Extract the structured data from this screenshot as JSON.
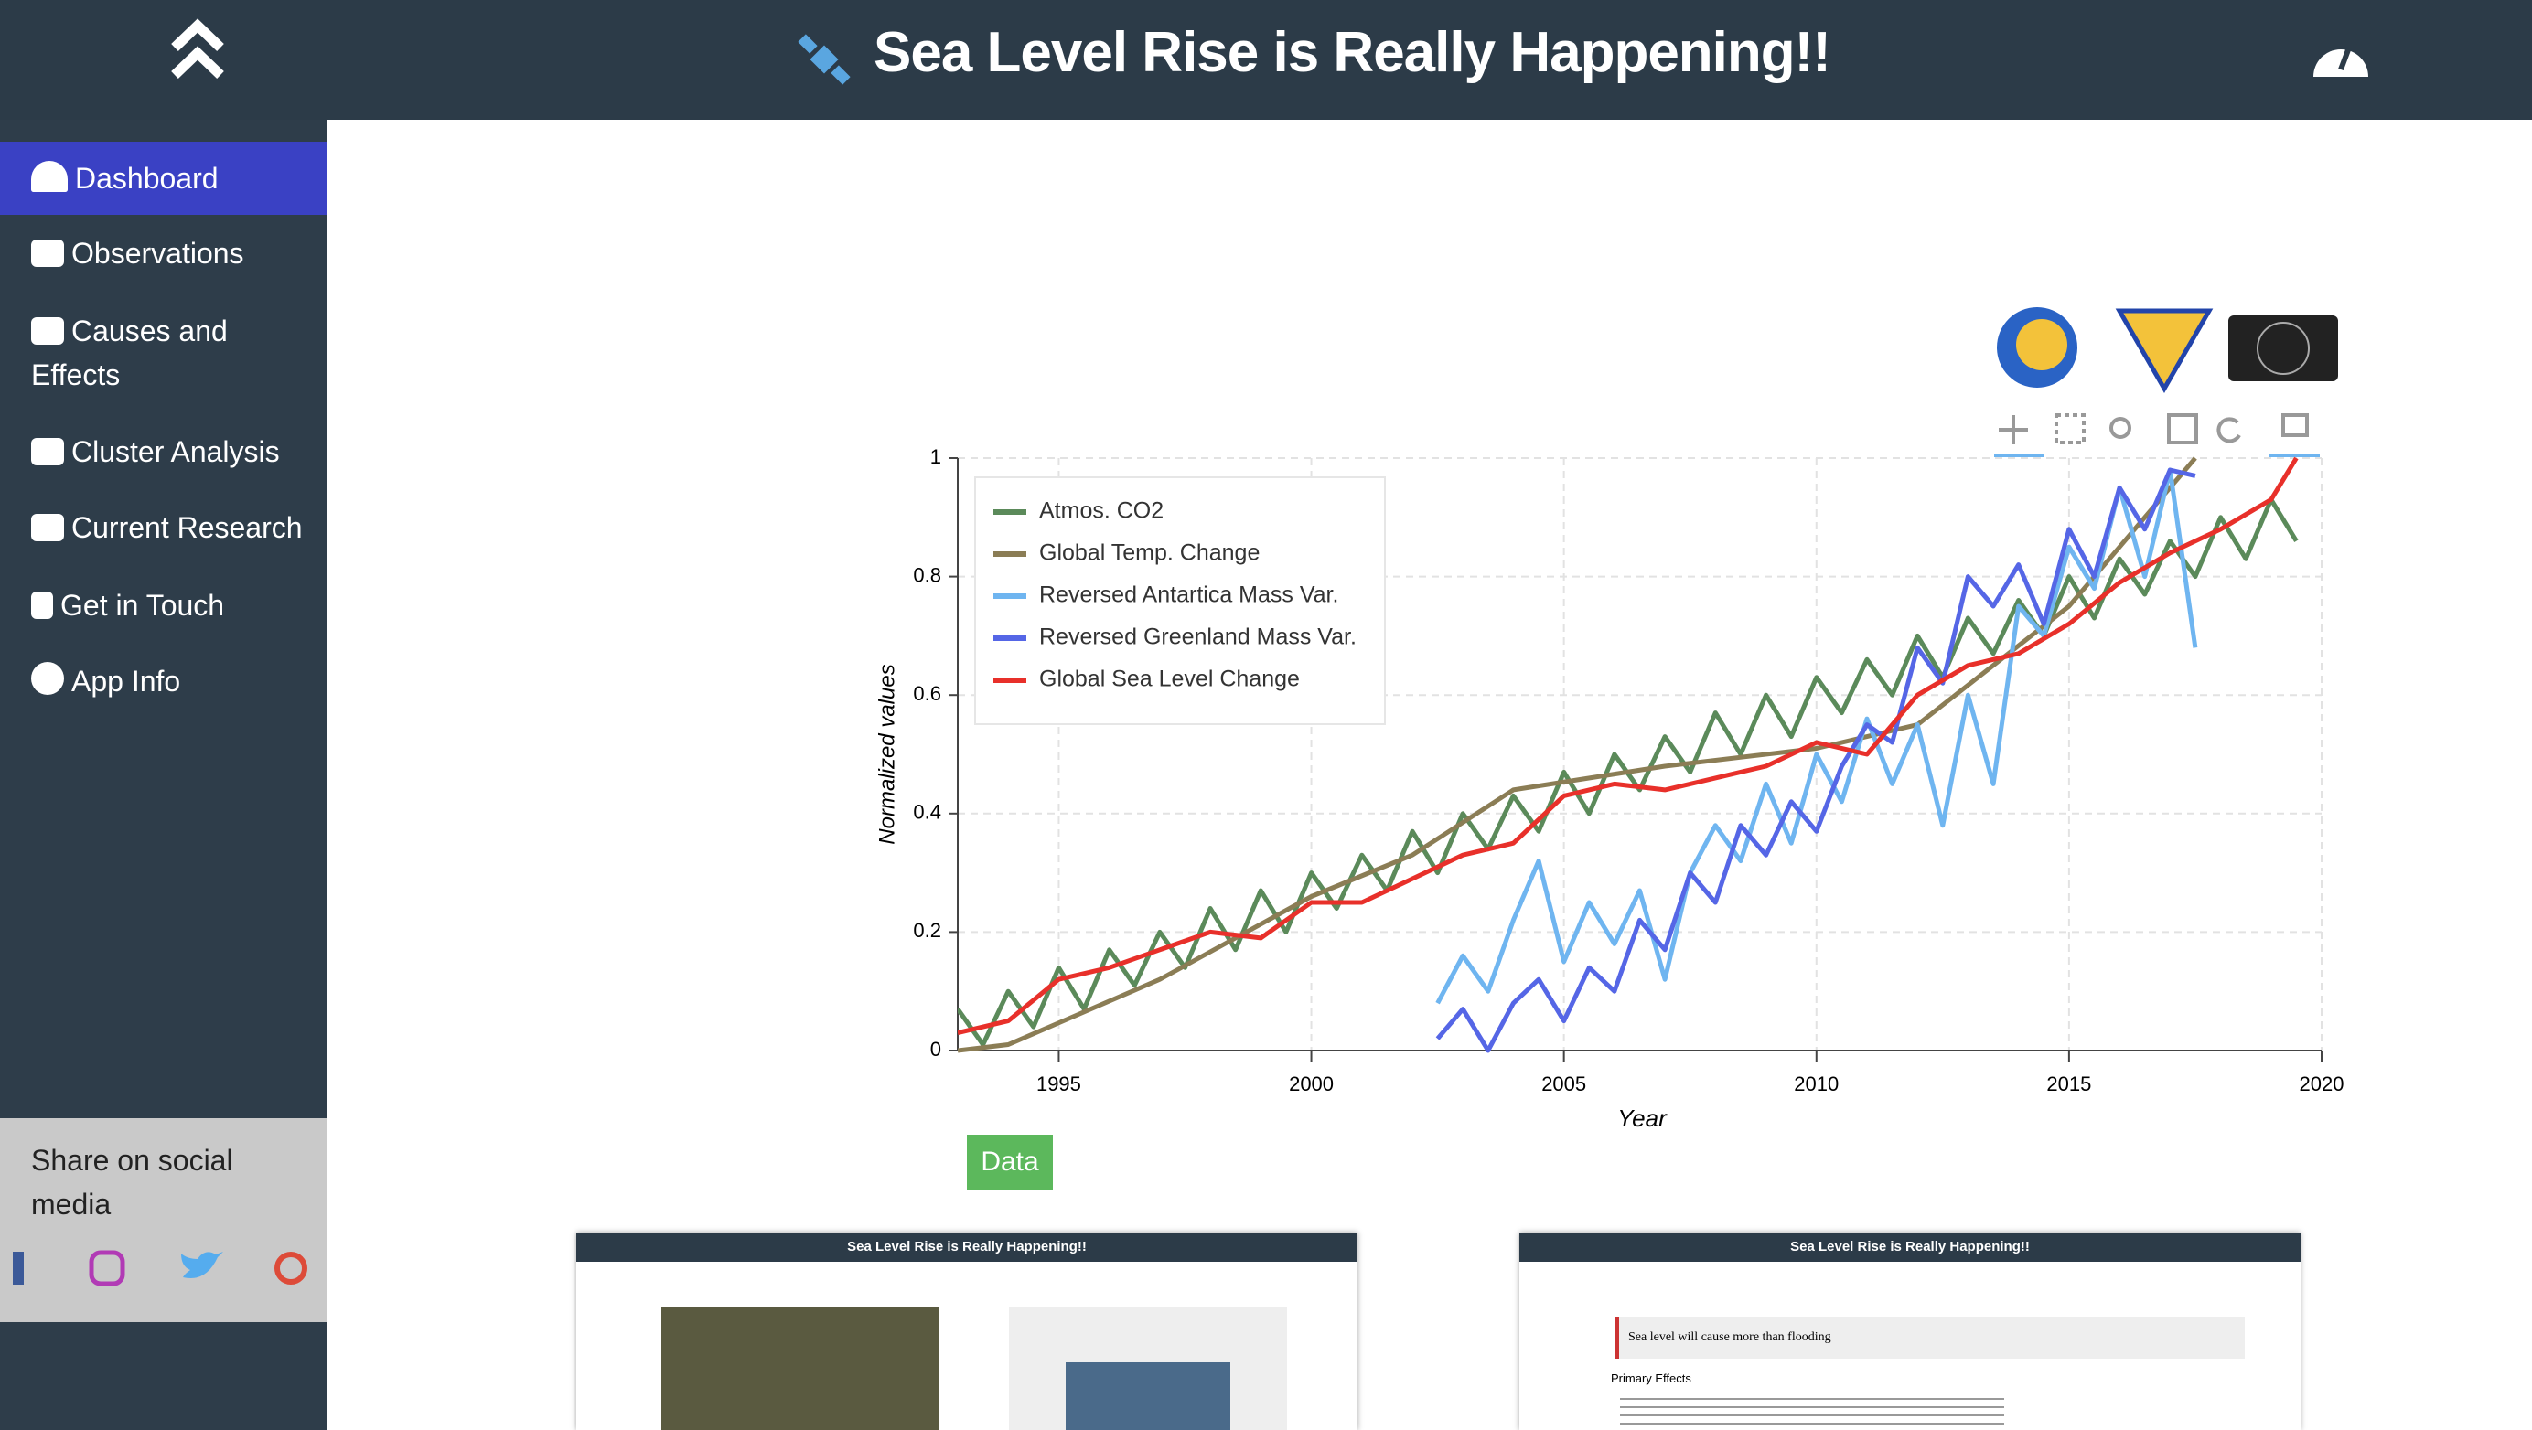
{
  "header": {
    "title": "Sea Level Rise is Really Happening!!"
  },
  "sidebar": {
    "nav": [
      "Dashboard",
      "Observations",
      "Causes and Effects",
      "Cluster Analysis",
      "Current Research",
      "Get in Touch",
      "App Info"
    ],
    "share": "Share on social media"
  },
  "data_button": "Data",
  "thumbnails": {
    "quote": "Sea level will cause more than flooding",
    "heading": "Primary Effects"
  },
  "chart_data": {
    "type": "line",
    "x_label": "Year",
    "y_label": "Normalized values",
    "xlim": [
      1993,
      2020
    ],
    "xticks": [
      1995,
      2000,
      2005,
      2010,
      2015,
      2020
    ],
    "ylim": [
      0,
      1
    ],
    "yticks": [
      0,
      0.2,
      0.4,
      0.6,
      0.8,
      1
    ],
    "grid": true,
    "legend": "top-left",
    "series": [
      {
        "name": "Atmos. CO2",
        "color": "#5b8a5a",
        "x": [
          1993,
          1993.5,
          1994,
          1994.5,
          1995,
          1995.5,
          1996,
          1996.5,
          1997,
          1997.5,
          1998,
          1998.5,
          1999,
          1999.5,
          2000,
          2000.5,
          2001,
          2001.5,
          2002,
          2002.5,
          2003,
          2003.5,
          2004,
          2004.5,
          2005,
          2005.5,
          2006,
          2006.5,
          2007,
          2007.5,
          2008,
          2008.5,
          2009,
          2009.5,
          2010,
          2010.5,
          2011,
          2011.5,
          2012,
          2012.5,
          2013,
          2013.5,
          2014,
          2014.5,
          2015,
          2015.5,
          2016,
          2016.5,
          2017,
          2017.5,
          2018,
          2018.5,
          2019,
          2019.5
        ],
        "values": [
          0.07,
          0.01,
          0.1,
          0.04,
          0.14,
          0.07,
          0.17,
          0.11,
          0.2,
          0.14,
          0.24,
          0.17,
          0.27,
          0.2,
          0.3,
          0.24,
          0.33,
          0.27,
          0.37,
          0.3,
          0.4,
          0.34,
          0.43,
          0.37,
          0.47,
          0.4,
          0.5,
          0.44,
          0.53,
          0.47,
          0.57,
          0.5,
          0.6,
          0.53,
          0.63,
          0.57,
          0.66,
          0.6,
          0.7,
          0.63,
          0.73,
          0.67,
          0.76,
          0.7,
          0.8,
          0.73,
          0.83,
          0.77,
          0.86,
          0.8,
          0.9,
          0.83,
          0.93,
          0.86
        ]
      },
      {
        "name": "Global Temp. Change",
        "color": "#8b7d55",
        "x": [
          1993,
          1994,
          1997,
          2000,
          2002,
          2004,
          2007,
          2010,
          2012,
          2015,
          2017.5
        ],
        "values": [
          0,
          0.01,
          0.12,
          0.26,
          0.33,
          0.44,
          0.48,
          0.51,
          0.55,
          0.75,
          1.0
        ]
      },
      {
        "name": "Reversed Antartica Mass Var.",
        "color": "#6fb5f0",
        "x": [
          2002.5,
          2003,
          2003.5,
          2004,
          2004.5,
          2005,
          2005.5,
          2006,
          2006.5,
          2007,
          2007.5,
          2008,
          2008.5,
          2009,
          2009.5,
          2010,
          2010.5,
          2011,
          2011.5,
          2012,
          2012.5,
          2013,
          2013.5,
          2014,
          2014.5,
          2015,
          2015.5,
          2016,
          2016.5,
          2017,
          2017.5
        ],
        "values": [
          0.08,
          0.16,
          0.1,
          0.22,
          0.32,
          0.15,
          0.25,
          0.18,
          0.27,
          0.12,
          0.3,
          0.38,
          0.32,
          0.45,
          0.35,
          0.5,
          0.42,
          0.56,
          0.45,
          0.55,
          0.38,
          0.6,
          0.45,
          0.75,
          0.7,
          0.85,
          0.78,
          0.95,
          0.8,
          0.98,
          0.68
        ]
      },
      {
        "name": "Reversed Greenland Mass Var.",
        "color": "#5566e6",
        "x": [
          2002.5,
          2003,
          2003.5,
          2004,
          2004.5,
          2005,
          2005.5,
          2006,
          2006.5,
          2007,
          2007.5,
          2008,
          2008.5,
          2009,
          2009.5,
          2010,
          2010.5,
          2011,
          2011.5,
          2012,
          2012.5,
          2013,
          2013.5,
          2014,
          2014.5,
          2015,
          2015.5,
          2016,
          2016.5,
          2017,
          2017.5
        ],
        "values": [
          0.02,
          0.07,
          0.0,
          0.08,
          0.12,
          0.05,
          0.14,
          0.1,
          0.22,
          0.17,
          0.3,
          0.25,
          0.38,
          0.33,
          0.42,
          0.37,
          0.48,
          0.55,
          0.52,
          0.68,
          0.62,
          0.8,
          0.75,
          0.82,
          0.72,
          0.88,
          0.8,
          0.95,
          0.88,
          0.98,
          0.97
        ]
      },
      {
        "name": "Global Sea Level Change",
        "color": "#e8302a",
        "x": [
          1993,
          1994,
          1995,
          1996,
          1997,
          1998,
          1999,
          2000,
          2001,
          2002,
          2003,
          2004,
          2005,
          2006,
          2007,
          2008,
          2009,
          2010,
          2011,
          2012,
          2013,
          2014,
          2015,
          2016,
          2017,
          2018,
          2019,
          2019.5
        ],
        "values": [
          0.03,
          0.05,
          0.12,
          0.14,
          0.17,
          0.2,
          0.19,
          0.25,
          0.25,
          0.29,
          0.33,
          0.35,
          0.43,
          0.45,
          0.44,
          0.46,
          0.48,
          0.52,
          0.5,
          0.6,
          0.65,
          0.67,
          0.72,
          0.79,
          0.84,
          0.88,
          0.93,
          1.0
        ]
      }
    ]
  }
}
